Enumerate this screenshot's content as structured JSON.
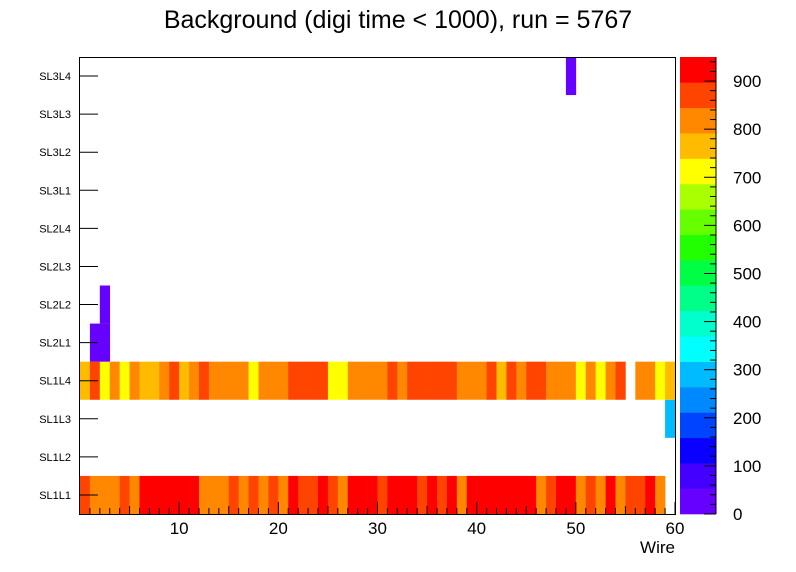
{
  "chart_data": {
    "type": "heatmap",
    "title": "Background (digi time < 1000), run = 5767",
    "xlabel": "Wire",
    "ylabel": "",
    "xlim": [
      0,
      60
    ],
    "x_ticks": [
      10,
      20,
      30,
      40,
      50,
      60
    ],
    "layers": [
      "SL1L1",
      "SL1L2",
      "SL1L3",
      "SL1L4",
      "SL2L1",
      "SL2L2",
      "SL2L3",
      "SL2L4",
      "SL3L1",
      "SL3L2",
      "SL3L3",
      "SL3L4"
    ],
    "zlim": [
      0,
      950
    ],
    "z_ticks": [
      0,
      100,
      200,
      300,
      400,
      500,
      600,
      700,
      800,
      900
    ],
    "palette": [
      "#6600ff",
      "#4400ff",
      "#0a00ff",
      "#0044ff",
      "#0088ff",
      "#00bbff",
      "#00ffff",
      "#00ffcc",
      "#00ff88",
      "#00ff44",
      "#22ff00",
      "#66ff00",
      "#aaff00",
      "#ffff00",
      "#ffbb00",
      "#ff8800",
      "#ff4400",
      "#ff0000"
    ],
    "grid": false,
    "legend": "color scale at right",
    "cells": [
      {
        "layer": "SL1L1",
        "wires": [
          1,
          2,
          3,
          4,
          5,
          6,
          7,
          8,
          9,
          10,
          11,
          12,
          13,
          14,
          15,
          16,
          17,
          18,
          19,
          20,
          21,
          22,
          23,
          24,
          25,
          26,
          27,
          28,
          29,
          30,
          31,
          32,
          33,
          34,
          35,
          36,
          37,
          38,
          39,
          40,
          41,
          42,
          43,
          44,
          45,
          46,
          47,
          48,
          49,
          50,
          51,
          52,
          53,
          54,
          55,
          56,
          57,
          58,
          59
        ],
        "values": [
          850,
          830,
          830,
          830,
          880,
          830,
          900,
          900,
          900,
          900,
          950,
          900,
          800,
          800,
          800,
          880,
          830,
          880,
          820,
          880,
          830,
          900,
          880,
          880,
          900,
          880,
          830,
          900,
          900,
          900,
          880,
          900,
          950,
          950,
          880,
          900,
          880,
          950,
          830,
          900,
          900,
          950,
          950,
          950,
          950,
          900,
          830,
          880,
          900,
          900,
          820,
          880,
          830,
          900,
          830,
          880,
          880,
          900,
          830
        ]
      },
      {
        "layer": "SL1L3",
        "wires": [
          60
        ],
        "values": [
          300
        ]
      },
      {
        "layer": "SL1L4",
        "wires": [
          1,
          2,
          3,
          4,
          5,
          6,
          7,
          8,
          9,
          10,
          11,
          12,
          13,
          14,
          15,
          16,
          17,
          18,
          19,
          20,
          21,
          22,
          23,
          24,
          25,
          26,
          27,
          28,
          29,
          30,
          31,
          32,
          33,
          34,
          35,
          36,
          37,
          38,
          39,
          40,
          41,
          42,
          43,
          44,
          45,
          46,
          47,
          48,
          49,
          50,
          51,
          52,
          53,
          54,
          55,
          57,
          58,
          59,
          60
        ],
        "values": [
          780,
          850,
          730,
          830,
          730,
          800,
          750,
          750,
          830,
          880,
          780,
          830,
          850,
          800,
          800,
          800,
          800,
          730,
          800,
          800,
          800,
          850,
          850,
          850,
          850,
          730,
          730,
          800,
          800,
          800,
          830,
          880,
          800,
          880,
          880,
          880,
          850,
          850,
          830,
          800,
          830,
          880,
          780,
          880,
          830,
          850,
          880,
          800,
          800,
          800,
          730,
          830,
          730,
          800,
          880,
          800,
          830,
          730,
          780
        ]
      },
      {
        "layer": "SL2L1",
        "wires": [
          2,
          3
        ],
        "values": [
          20,
          20
        ]
      },
      {
        "layer": "SL2L2",
        "wires": [
          3
        ],
        "values": [
          20
        ]
      },
      {
        "layer": "SL3L4",
        "wires": [
          50
        ],
        "values": [
          20
        ]
      }
    ]
  }
}
